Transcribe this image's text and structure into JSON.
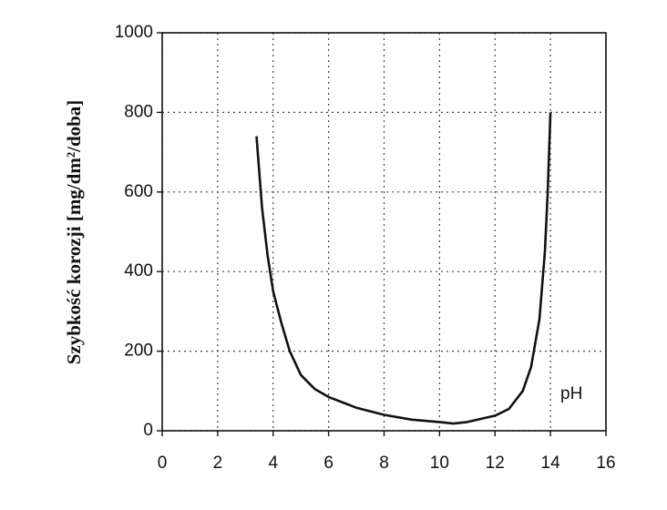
{
  "chart_data": {
    "type": "line",
    "y_label": "Szybkość korozji [mg/dm²/doba]",
    "annotation": "pH",
    "x": [
      3.4,
      3.6,
      3.8,
      4.0,
      4.3,
      4.6,
      5.0,
      5.5,
      6.0,
      7.0,
      8.0,
      9.0,
      10.0,
      10.5,
      11.0,
      12.0,
      12.5,
      13.0,
      13.3,
      13.6,
      13.8,
      13.9,
      14.0
    ],
    "series": [
      {
        "color": "#111111",
        "values": [
          740,
          560,
          440,
          350,
          270,
          200,
          140,
          105,
          85,
          58,
          40,
          28,
          22,
          18,
          22,
          38,
          55,
          100,
          160,
          280,
          450,
          600,
          800
        ]
      }
    ],
    "xlim": [
      0,
      16
    ],
    "xticks": [
      0,
      2,
      4,
      6,
      8,
      10,
      12,
      14,
      16
    ],
    "ylim": [
      0,
      1000
    ],
    "yticks": [
      0,
      200,
      400,
      600,
      800,
      1000
    ],
    "grid": true
  }
}
